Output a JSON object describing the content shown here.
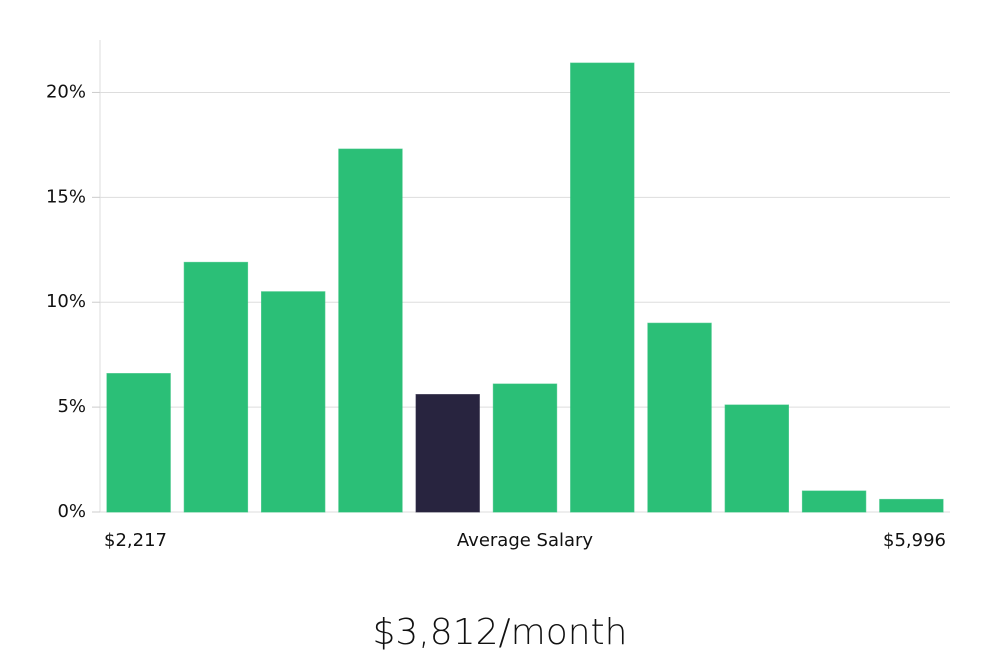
{
  "chart_data": {
    "type": "bar",
    "categories": [
      null,
      null,
      null,
      null,
      null,
      null,
      null,
      null,
      null,
      null,
      null
    ],
    "values": [
      6.6,
      11.9,
      10.5,
      17.3,
      5.6,
      6.1,
      21.4,
      9.0,
      5.1,
      1.0,
      0.6
    ],
    "colors": [
      "#2bbf77",
      "#2bbf77",
      "#2bbf77",
      "#2bbf77",
      "#28243f",
      "#2bbf77",
      "#2bbf77",
      "#2bbf77",
      "#2bbf77",
      "#2bbf77",
      "#2bbf77"
    ],
    "ylim": [
      0,
      22.5
    ],
    "yticks": [
      {
        "value": 0,
        "label": "0%"
      },
      {
        "value": 5,
        "label": "5%"
      },
      {
        "value": 10,
        "label": "10%"
      },
      {
        "value": 15,
        "label": "15%"
      },
      {
        "value": 20,
        "label": "20%"
      }
    ],
    "grid": true,
    "x_min_label": "$2,217",
    "x_label": "Average Salary",
    "x_max_label": "$5,996",
    "summary": "$3,812/month"
  }
}
